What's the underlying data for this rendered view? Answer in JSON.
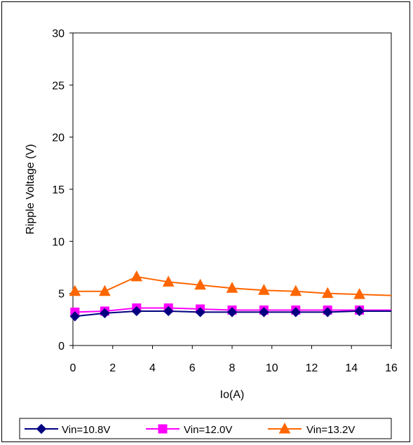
{
  "chart_data": {
    "type": "line",
    "xlabel": "Io(A)",
    "ylabel": "Ripple Voltage (V)",
    "xlim": [
      0,
      16
    ],
    "ylim": [
      0,
      30
    ],
    "xticks": [
      "0",
      "2",
      "4",
      "6",
      "8",
      "10",
      "12",
      "14",
      "16"
    ],
    "yticks": [
      "0",
      "5",
      "10",
      "15",
      "20",
      "25",
      "30"
    ],
    "grid": "dashed vertical and horizontal",
    "legend_position": "bottom",
    "series": [
      {
        "name": "Vin=10.8V",
        "color": "#000080",
        "marker": "diamond",
        "x": [
          0.1,
          1.6,
          3.2,
          4.8,
          6.4,
          8.0,
          9.6,
          11.2,
          12.8,
          14.4,
          16.0
        ],
        "y": [
          2.8,
          3.1,
          3.3,
          3.3,
          3.2,
          3.2,
          3.2,
          3.2,
          3.2,
          3.3,
          3.3
        ],
        "marker_count": 10
      },
      {
        "name": "Vin=12.0V",
        "color": "#ff00ff",
        "marker": "square",
        "x": [
          0.1,
          1.6,
          3.2,
          4.8,
          6.4,
          8.0,
          9.6,
          11.2,
          12.8,
          14.4,
          16.0
        ],
        "y": [
          3.2,
          3.3,
          3.6,
          3.6,
          3.5,
          3.4,
          3.4,
          3.4,
          3.4,
          3.4,
          3.4
        ],
        "marker_count": 10
      },
      {
        "name": "Vin=13.2V",
        "color": "#ff6600",
        "marker": "triangle",
        "x": [
          0.1,
          1.6,
          3.2,
          4.8,
          6.4,
          8.0,
          9.6,
          11.2,
          12.8,
          14.4,
          16.0
        ],
        "y": [
          5.2,
          5.2,
          6.6,
          6.1,
          5.8,
          5.5,
          5.3,
          5.2,
          5.0,
          4.9,
          4.8
        ],
        "marker_count": 10
      }
    ]
  }
}
